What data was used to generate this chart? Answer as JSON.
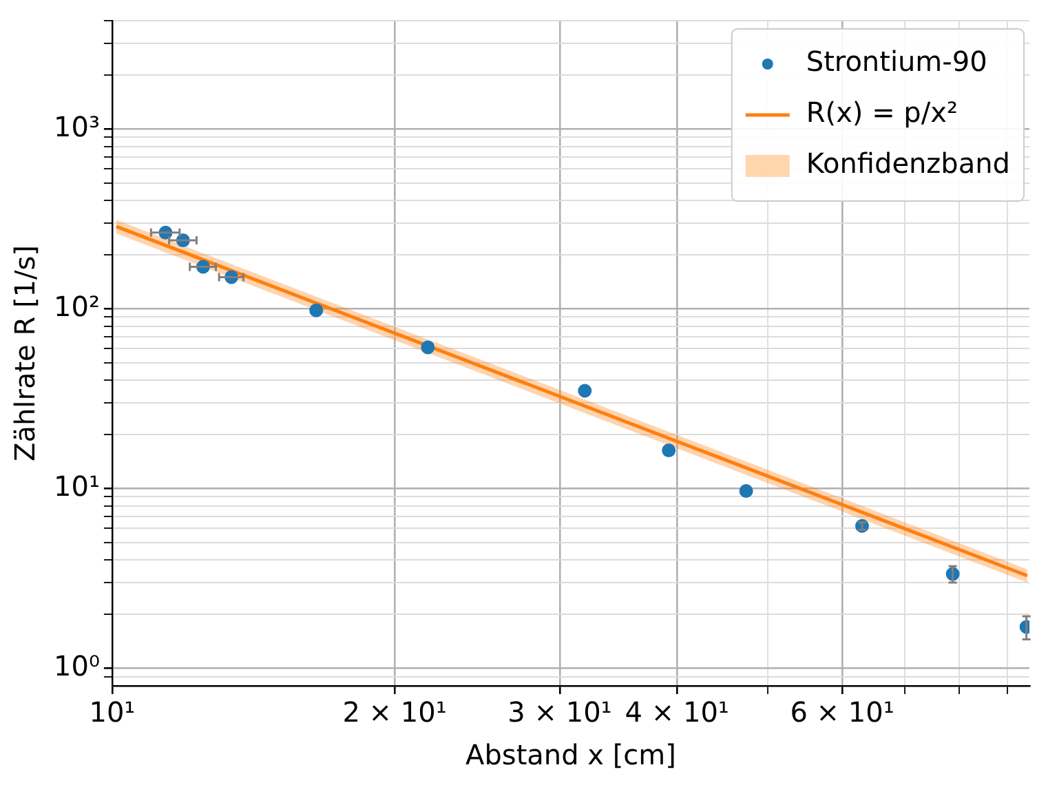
{
  "chart_data": {
    "type": "scatter",
    "xlabel": "Abstand x [cm]",
    "ylabel": "Zählrate R [1/s]",
    "log": "xy",
    "grid": true,
    "legend": "top right",
    "marker": "circle",
    "xlim": [
      10,
      95
    ],
    "ylim": [
      0.8,
      4000
    ],
    "xticks": [
      {
        "value": 10,
        "label": "10¹"
      },
      {
        "value": 20,
        "label": "2 × 10¹"
      },
      {
        "value": 30,
        "label": "3 × 10¹"
      },
      {
        "value": 40,
        "label": "4 × 10¹"
      },
      {
        "value": 50,
        "label": null
      },
      {
        "value": 60,
        "label": "6 × 10¹"
      },
      {
        "value": 70,
        "label": null
      },
      {
        "value": 80,
        "label": null
      },
      {
        "value": 90,
        "label": null
      }
    ],
    "yticks": [
      {
        "value": 0.9,
        "label": null
      },
      {
        "value": 1,
        "label": "10⁰"
      },
      {
        "value": 2,
        "label": null
      },
      {
        "value": 3,
        "label": null
      },
      {
        "value": 4,
        "label": null
      },
      {
        "value": 5,
        "label": null
      },
      {
        "value": 6,
        "label": null
      },
      {
        "value": 7,
        "label": null
      },
      {
        "value": 8,
        "label": null
      },
      {
        "value": 9,
        "label": null
      },
      {
        "value": 10,
        "label": "10¹"
      },
      {
        "value": 20,
        "label": null
      },
      {
        "value": 30,
        "label": null
      },
      {
        "value": 40,
        "label": null
      },
      {
        "value": 50,
        "label": null
      },
      {
        "value": 60,
        "label": null
      },
      {
        "value": 70,
        "label": null
      },
      {
        "value": 80,
        "label": null
      },
      {
        "value": 90,
        "label": null
      },
      {
        "value": 100,
        "label": "10²"
      },
      {
        "value": 200,
        "label": null
      },
      {
        "value": 300,
        "label": null
      },
      {
        "value": 400,
        "label": null
      },
      {
        "value": 500,
        "label": null
      },
      {
        "value": 600,
        "label": null
      },
      {
        "value": 700,
        "label": null
      },
      {
        "value": 800,
        "label": null
      },
      {
        "value": 900,
        "label": null
      },
      {
        "value": 1000,
        "label": "10³"
      },
      {
        "value": 2000,
        "label": null
      },
      {
        "value": 3000,
        "label": null
      },
      {
        "value": 4000,
        "label": null
      }
    ],
    "series": [
      {
        "name": "Strontium-90",
        "color": "#1f77b4",
        "x": [
          11.4,
          11.9,
          12.5,
          13.4,
          16.5,
          21.7,
          31.9,
          39.2,
          47.4,
          63.0,
          78.7,
          94.3
        ],
        "values": [
          265,
          240,
          171,
          150,
          98,
          61,
          35,
          16.3,
          9.7,
          6.2,
          3.35,
          1.7
        ],
        "xerrors": [
          0.4,
          0.4,
          0.4,
          0.4,
          null,
          null,
          null,
          null,
          null,
          null,
          null,
          null
        ],
        "errors": [
          null,
          null,
          null,
          null,
          null,
          null,
          null,
          null,
          null,
          0.3,
          0.35,
          0.25
        ]
      },
      {
        "name": "R(x) = p/x²",
        "type": "line",
        "marker": "none",
        "color": "#ff7f0e",
        "x": [
          10.1,
          94.5
        ],
        "values": [
          287,
          3.28
        ],
        "lower": [
          262,
          3.0
        ],
        "upper": [
          312,
          3.56
        ]
      },
      {
        "name": "Konfidenzband",
        "type": "area",
        "color": "#ffbb78"
      }
    ]
  }
}
